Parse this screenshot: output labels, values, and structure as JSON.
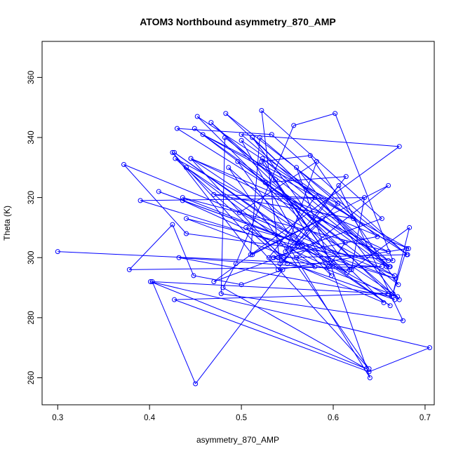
{
  "chart_data": {
    "type": "line",
    "title": "ATOM3 Northbound asymmetry_870_AMP",
    "xlabel": "asymmetry_870_AMP",
    "ylabel": "Theta (K)",
    "xlim": [
      0.283,
      0.71
    ],
    "ylim": [
      251,
      372
    ],
    "xticks": [
      0.3,
      0.4,
      0.5,
      0.6,
      0.7
    ],
    "xtick_labels": [
      "0.3",
      "0.4",
      "0.5",
      "0.6",
      "0.7"
    ],
    "yticks": [
      260,
      280,
      300,
      320,
      340,
      360
    ],
    "ytick_labels": [
      "260",
      "280",
      "300",
      "320",
      "340",
      "360"
    ],
    "grid": false,
    "legend": "none",
    "series_color": "#0000ff",
    "marker": "open-circle",
    "series": [
      {
        "x": [
          0.3,
          0.653,
          0.378,
          0.425,
          0.448,
          0.5,
          0.545,
          0.45,
          0.403,
          0.66,
          0.427,
          0.639,
          0.705,
          0.401,
          0.636,
          0.48,
          0.494,
          0.557,
          0.602,
          0.665,
          0.44,
          0.372,
          0.667,
          0.428,
          0.546,
          0.68,
          0.533,
          0.43,
          0.66,
          0.5,
          0.672,
          0.47,
          0.54,
          0.655,
          0.452,
          0.681,
          0.483,
          0.661,
          0.482,
          0.478,
          0.676,
          0.606,
          0.54,
          0.68,
          0.665,
          0.683,
          0.62,
          0.634,
          0.39,
          0.668,
          0.41,
          0.562,
          0.436,
          0.66,
          0.445,
          0.682,
          0.458,
          0.605,
          0.542,
          0.522,
          0.653,
          0.535,
          0.667,
          0.498,
          0.582,
          0.548,
          0.614,
          0.526,
          0.672,
          0.56,
          0.64,
          0.553,
          0.588,
          0.51,
          0.52,
          0.648,
          0.53,
          0.58,
          0.47,
          0.622,
          0.5,
          0.566,
          0.598,
          0.523,
          0.662,
          0.505,
          0.55,
          0.445,
          0.67,
          0.56,
          0.66,
          0.512,
          0.425,
          0.639,
          0.486,
          0.615,
          0.427,
          0.662,
          0.44,
          0.58,
          0.44,
          0.561,
          0.496,
          0.671,
          0.575,
          0.522,
          0.6,
          0.537,
          0.467,
          0.664,
          0.432,
          0.618,
          0.512,
          0.658,
          0.449,
          0.613,
          0.595,
          0.436
        ],
        "y": [
          302,
          297,
          296,
          311,
          294,
          291,
          296,
          258,
          292,
          288,
          286,
          262,
          270,
          292,
          263,
          290,
          298,
          344,
          348,
          299,
          308,
          331,
          294,
          333,
          300,
          301,
          341,
          343,
          299,
          341,
          337,
          292,
          300,
          285,
          347,
          301,
          348,
          297,
          340,
          288,
          279,
          324,
          296,
          303,
          288,
          310,
          296,
          320,
          319,
          293,
          322,
          305,
          320,
          302,
          333,
          303,
          341,
          318,
          298,
          349,
          313,
          300,
          286,
          315,
          332,
          302,
          327,
          325,
          286,
          330,
          260,
          303,
          313,
          301,
          340,
          307,
          300,
          320,
          321,
          313,
          339,
          304,
          294,
          333,
          297,
          310,
          298,
          333,
          287,
          300,
          324,
          301,
          335,
          263,
          330,
          295,
          335,
          284,
          330,
          297,
          313,
          304,
          332,
          291,
          334,
          332,
          298,
          326,
          345,
          287,
          300,
          296,
          340,
          297,
          343,
          305,
          297,
          319
        ]
      }
    ]
  }
}
